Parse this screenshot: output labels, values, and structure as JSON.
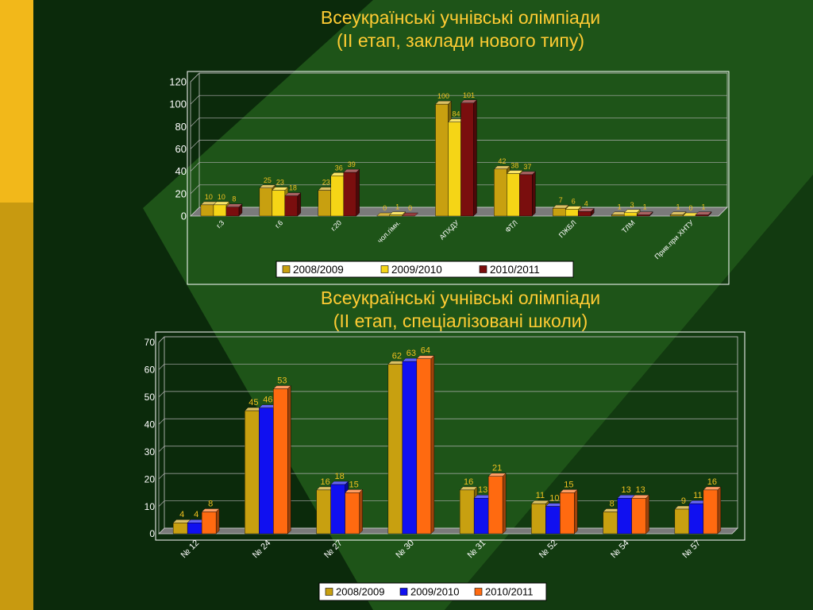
{
  "slide": {
    "title1_line1": "Всеукраїнські учнівські олімпіади",
    "title1_line2": "(ІІ етап, заклади нового типу)",
    "title2_line1": "Всеукраїнські учнівські олімпіади",
    "title2_line2": "(ІІ етап, спеціалізовані школи)"
  },
  "colors": {
    "background_dark": "#0b2a0b",
    "background_green": "#1e5418",
    "left_stripe": "#f2b81a",
    "left_stripe_lower": "#c89a10",
    "title_text": "#ffcc33"
  },
  "chart_data": [
    {
      "type": "bar",
      "categories": [
        "г.3",
        "г.6",
        "г.20",
        "чол.гімн.",
        "АПХДУ",
        "ФТЛ",
        "ПЖБЛ",
        "ТЛМ",
        "Прив.при ХНТУ"
      ],
      "series": [
        {
          "name": "2008/2009",
          "color": "#c8a010",
          "values": [
            10,
            25,
            23,
            0,
            100,
            42,
            7,
            1,
            1
          ]
        },
        {
          "name": "2009/2010",
          "color": "#f5d516",
          "values": [
            10,
            23,
            36,
            1,
            84,
            38,
            6,
            3,
            0
          ]
        },
        {
          "name": "2010/2011",
          "color": "#7a0e0e",
          "values": [
            8,
            18,
            39,
            0,
            101,
            37,
            4,
            1,
            1
          ]
        }
      ],
      "ylim": [
        0,
        120
      ],
      "yticks": [
        0,
        20,
        40,
        60,
        80,
        100,
        120
      ],
      "grid": true,
      "legend": "bottom",
      "label_color": "#f0c020"
    },
    {
      "type": "bar",
      "categories": [
        "№ 12",
        "№ 24",
        "№ 27",
        "№ 30",
        "№ 31",
        "№ 52",
        "№ 54",
        "№ 57"
      ],
      "series": [
        {
          "name": "2008/2009",
          "color": "#c8a010",
          "values": [
            4,
            45,
            16,
            62,
            16,
            11,
            8,
            9
          ]
        },
        {
          "name": "2009/2010",
          "color": "#1010f0",
          "values": [
            4,
            46,
            18,
            63,
            13,
            10,
            13,
            11
          ]
        },
        {
          "name": "2010/2011",
          "color": "#ff6a10",
          "values": [
            8,
            53,
            15,
            64,
            21,
            15,
            13,
            16
          ]
        }
      ],
      "ylim": [
        0,
        70
      ],
      "yticks": [
        0,
        10,
        20,
        30,
        40,
        50,
        60,
        70
      ],
      "grid": true,
      "legend": "bottom",
      "label_color": "#f0c020"
    }
  ]
}
